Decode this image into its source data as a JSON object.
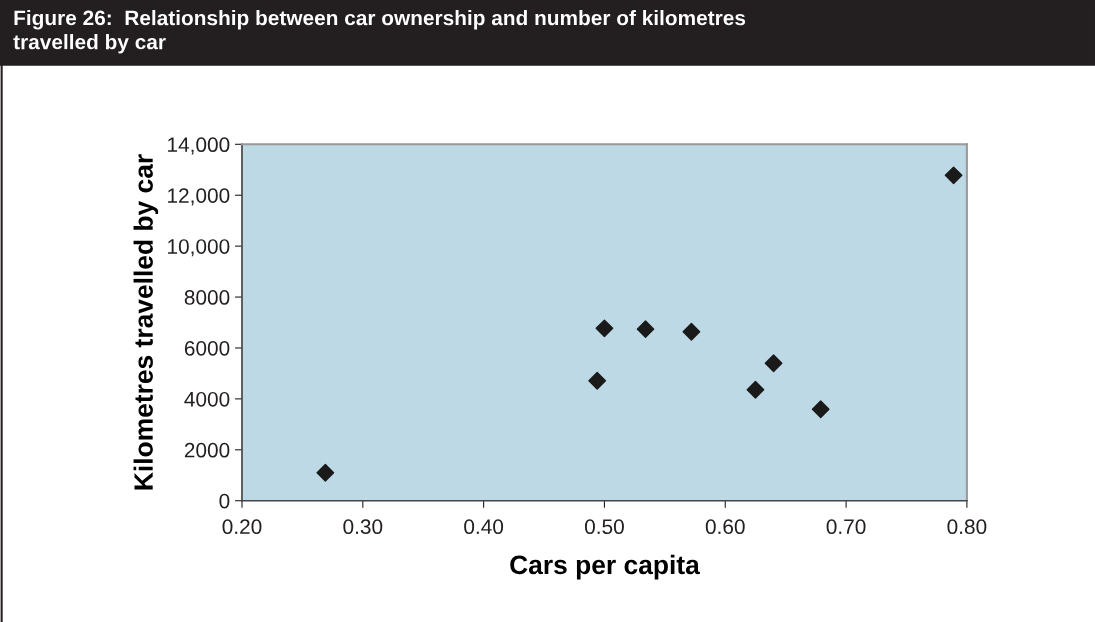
{
  "chart_data": {
    "type": "scatter",
    "title": "Figure 26:  Relationship between car ownership and number of kilometres\ntravelled by car",
    "xlabel": "Cars per capita",
    "ylabel": "Kilometres travelled by car",
    "x": [
      0.269,
      0.494,
      0.5,
      0.534,
      0.572,
      0.625,
      0.64,
      0.679,
      0.789
    ],
    "series": [
      {
        "color": "#1a1a1a",
        "values": [
          1100,
          4710,
          6770,
          6740,
          6640,
          4360,
          5400,
          3590,
          12780
        ]
      }
    ],
    "xlim": [
      0.2,
      0.8
    ],
    "xticks": [
      {
        "value": 0.2,
        "label": "0.20"
      },
      {
        "value": 0.3,
        "label": "0.30"
      },
      {
        "value": 0.4,
        "label": "0.40"
      },
      {
        "value": 0.5,
        "label": "0.50"
      },
      {
        "value": 0.6,
        "label": "0.60"
      },
      {
        "value": 0.7,
        "label": "0.70"
      },
      {
        "value": 0.8,
        "label": "0.80"
      }
    ],
    "ylim": [
      0,
      14000
    ],
    "yticks": [
      0,
      2000,
      4000,
      6000,
      8000,
      {
        "value": 10000,
        "label": "10,000"
      },
      {
        "value": 12000,
        "label": "12,000"
      },
      {
        "value": 14000,
        "label": "14,000"
      }
    ],
    "marker": "diamond",
    "grid": false,
    "legend": false
  }
}
